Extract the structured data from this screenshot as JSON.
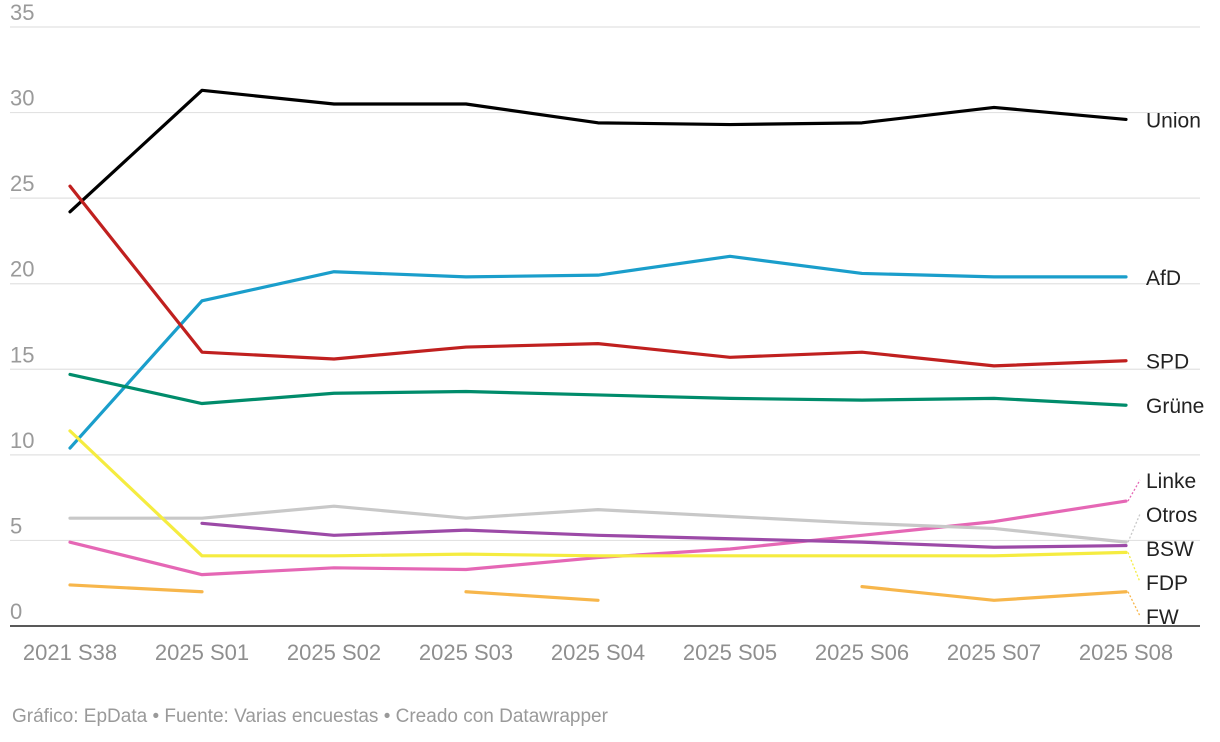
{
  "chart_data": {
    "type": "line",
    "title": "",
    "xlabel": "",
    "ylabel": "",
    "x": [
      "2021 S38",
      "2025 S01",
      "2025 S02",
      "2025 S03",
      "2025 S04",
      "2025 S05",
      "2025 S06",
      "2025 S07",
      "2025 S08"
    ],
    "ylim": [
      0,
      35
    ],
    "yticks": [
      0,
      5,
      10,
      15,
      20,
      25,
      30,
      35
    ],
    "grid": true,
    "legend": "direct labels at line ends (right)",
    "series": [
      {
        "name": "Union",
        "color": "#000000",
        "values": [
          24.2,
          31.3,
          30.5,
          30.5,
          29.4,
          29.3,
          29.4,
          30.3,
          29.6
        ]
      },
      {
        "name": "AfD",
        "color": "#1a9ecb",
        "values": [
          10.4,
          19.0,
          20.7,
          20.4,
          20.5,
          21.6,
          20.6,
          20.4,
          20.4
        ]
      },
      {
        "name": "SPD",
        "color": "#c0201f",
        "values": [
          25.7,
          16.0,
          15.6,
          16.3,
          16.5,
          15.7,
          16.0,
          15.2,
          15.5
        ]
      },
      {
        "name": "Grüne",
        "color": "#008c6b",
        "values": [
          14.7,
          13.0,
          13.6,
          13.7,
          13.5,
          13.3,
          13.2,
          13.3,
          12.9
        ]
      },
      {
        "name": "Linke",
        "color": "#e567b5",
        "values": [
          4.9,
          3.0,
          3.4,
          3.3,
          4.0,
          4.5,
          5.3,
          6.1,
          7.3
        ]
      },
      {
        "name": "Otros",
        "color": "#c8c8c8",
        "values": [
          6.3,
          6.3,
          7.0,
          6.3,
          6.8,
          6.4,
          6.0,
          5.7,
          4.9
        ]
      },
      {
        "name": "BSW",
        "color": "#9c4aa7",
        "values": [
          null,
          6.0,
          5.3,
          5.6,
          5.3,
          5.1,
          4.9,
          4.6,
          4.7
        ]
      },
      {
        "name": "FDP",
        "color": "#f5ec40",
        "values": [
          11.4,
          4.1,
          4.1,
          4.2,
          4.1,
          4.1,
          4.1,
          4.1,
          4.3
        ]
      },
      {
        "name": "FW",
        "color": "#f7b64b",
        "values": [
          2.4,
          2.0,
          null,
          2.0,
          1.5,
          null,
          2.3,
          1.5,
          2.0
        ]
      }
    ]
  },
  "footer": "Gráfico: EpData • Fuente: Varias encuestas • Creado con Datawrapper"
}
